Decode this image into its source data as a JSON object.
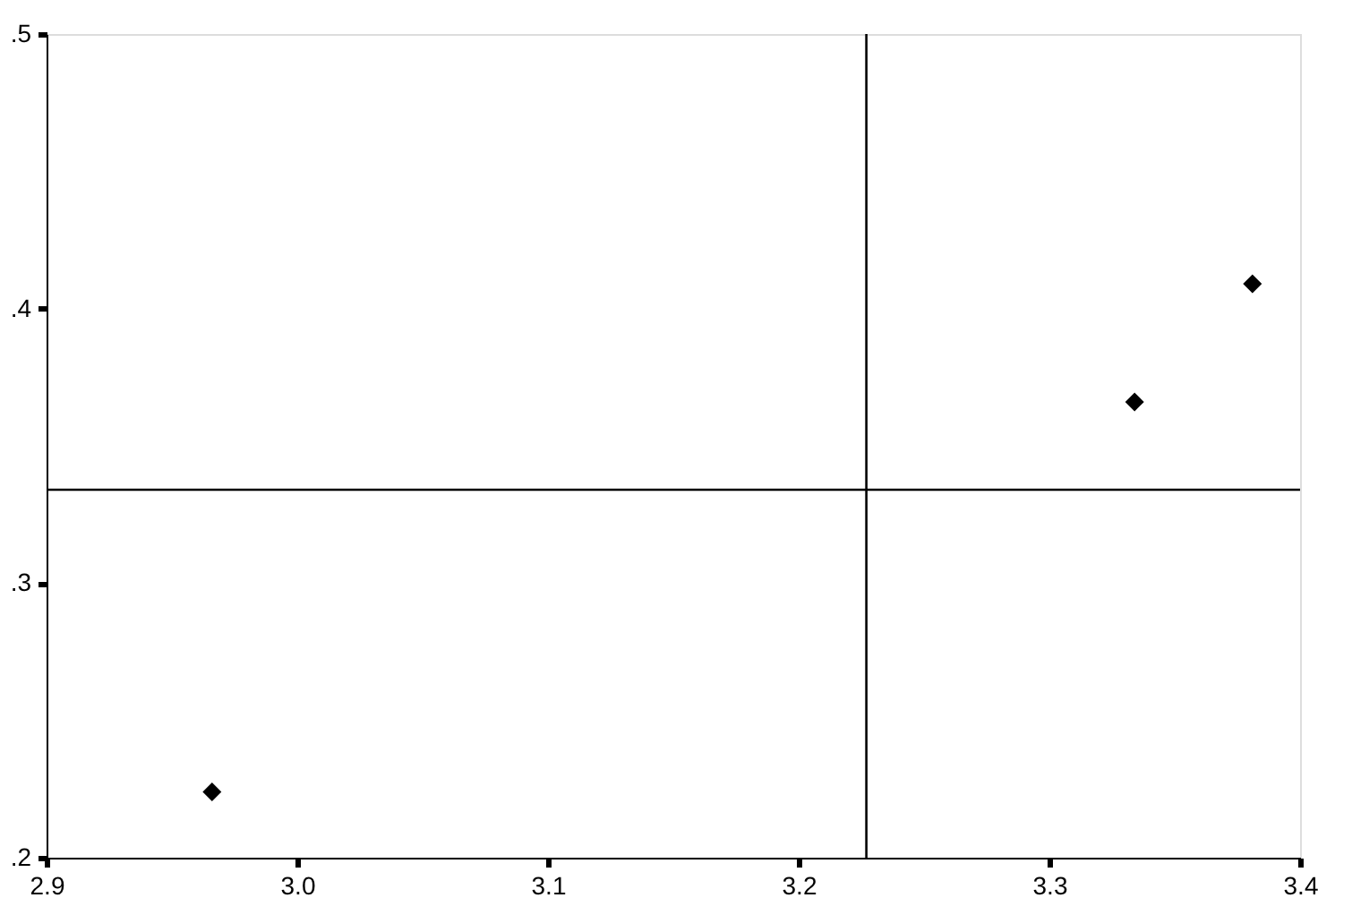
{
  "chart_data": {
    "type": "scatter",
    "x": [
      2.966,
      3.334,
      3.381
    ],
    "series": [
      {
        "color": "#000000",
        "values": [
          0.224,
          0.366,
          0.409
        ]
      }
    ],
    "xlim": [
      2.9,
      3.4
    ],
    "xticks": [
      {
        "value": 2.9,
        "label": "2.9"
      },
      {
        "value": 3.0,
        "label": "3.0"
      },
      {
        "value": 3.1,
        "label": "3.1"
      },
      {
        "value": 3.2,
        "label": "3.2"
      },
      {
        "value": 3.3,
        "label": "3.3"
      },
      {
        "value": 3.4,
        "label": "3.4"
      }
    ],
    "ylim": [
      0.2,
      0.5
    ],
    "yticks": [
      {
        "value": 0.2,
        "label": ".2"
      },
      {
        "value": 0.3,
        "label": ".3"
      },
      {
        "value": 0.4,
        "label": ".4"
      },
      {
        "value": 0.5,
        "label": ".5"
      }
    ],
    "ref_lines": [
      {
        "axis": "x",
        "value": 3.227,
        "color": "#000000"
      },
      {
        "axis": "y",
        "value": 0.334,
        "color": "#000000"
      }
    ],
    "marker": "diamond",
    "grid": false
  }
}
